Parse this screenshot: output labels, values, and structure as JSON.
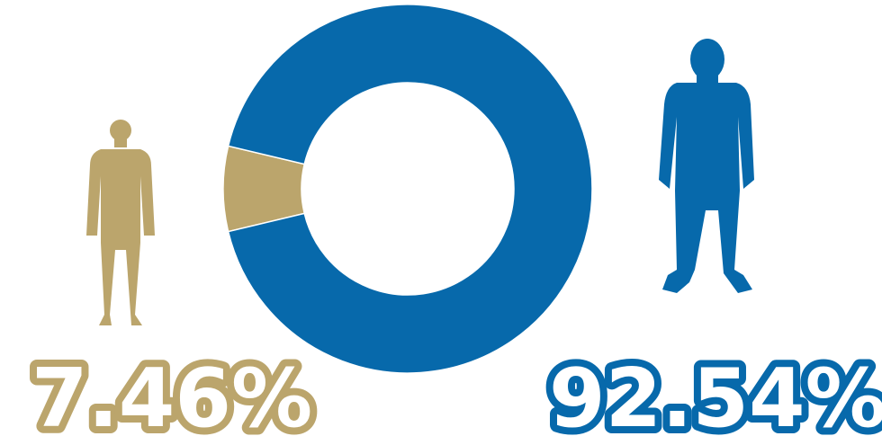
{
  "chart_data": {
    "type": "pie",
    "variant": "donut",
    "slices": [
      {
        "value": 7.46,
        "label": "7.46%",
        "color": "#BBA56C",
        "icon": "person-silhouette-icon"
      },
      {
        "value": 92.54,
        "label": "92.54%",
        "color": "#0769AB",
        "icon": "person-silhouette-icon"
      }
    ]
  }
}
